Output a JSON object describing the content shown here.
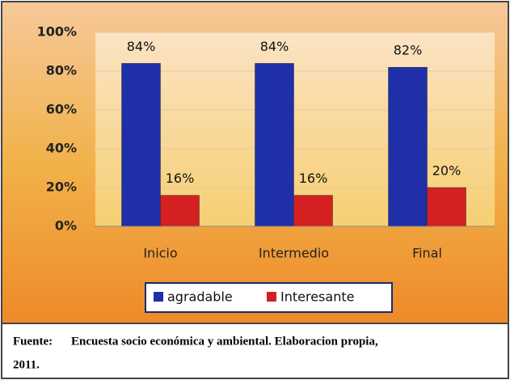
{
  "chart_data": {
    "type": "bar",
    "categories": [
      "Inicio",
      "Intermedio",
      "Final"
    ],
    "series": [
      {
        "name": "agradable",
        "color": "#1f2fa8",
        "values": [
          84,
          84,
          82
        ],
        "value_labels": [
          "84%",
          "84%",
          "82%"
        ]
      },
      {
        "name": "Interesante",
        "color": "#d42020",
        "values": [
          16,
          16,
          20
        ],
        "value_labels": [
          "16%",
          "16%",
          "20%"
        ]
      }
    ],
    "ylim": [
      0,
      100
    ],
    "yticks": [
      {
        "value": 0,
        "label": "0%"
      },
      {
        "value": 20,
        "label": "20%"
      },
      {
        "value": 40,
        "label": "40%"
      },
      {
        "value": 60,
        "label": "60%"
      },
      {
        "value": 80,
        "label": "80%"
      },
      {
        "value": 100,
        "label": "100%"
      }
    ],
    "grid": true,
    "caption_label": "Fuente:",
    "caption": "Encuesta socio económica y ambiental. Elaboracion propia,",
    "caption_line2": "2011."
  }
}
